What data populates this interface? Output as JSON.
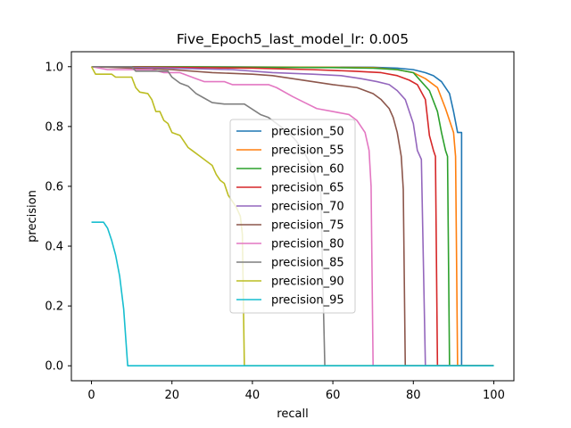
{
  "chart_data": {
    "type": "line",
    "title": "Five_Epoch5_last_model_lr: 0.005",
    "xlabel": "recall",
    "ylabel": "precision",
    "xlim": [
      -5,
      105
    ],
    "ylim": [
      -0.05,
      1.05
    ],
    "xticks": [
      0,
      20,
      40,
      60,
      80,
      100
    ],
    "yticks": [
      0.0,
      0.2,
      0.4,
      0.6,
      0.8,
      1.0
    ],
    "grid": false,
    "legend": {
      "placement": "center"
    },
    "series": [
      {
        "name": "precision_50",
        "color": "#1f77b4",
        "x": [
          0,
          70,
          76,
          80,
          83,
          85,
          87,
          89,
          90,
          91,
          92,
          92,
          100
        ],
        "y": [
          1.0,
          0.998,
          0.995,
          0.99,
          0.98,
          0.97,
          0.95,
          0.91,
          0.85,
          0.78,
          0.78,
          0.0,
          0.0
        ]
      },
      {
        "name": "precision_55",
        "color": "#ff7f0e",
        "x": [
          0,
          60,
          70,
          76,
          80,
          83,
          86,
          88,
          90,
          90.5,
          91,
          100
        ],
        "y": [
          1.0,
          0.998,
          0.997,
          0.99,
          0.98,
          0.96,
          0.93,
          0.86,
          0.78,
          0.7,
          0.0,
          0.0
        ]
      },
      {
        "name": "precision_60",
        "color": "#2ca02c",
        "x": [
          0,
          60,
          70,
          76,
          80,
          82,
          84,
          86,
          87,
          88,
          88.5,
          89,
          100
        ],
        "y": [
          1.0,
          0.997,
          0.995,
          0.99,
          0.98,
          0.95,
          0.92,
          0.85,
          0.78,
          0.72,
          0.7,
          0.0,
          0.0
        ]
      },
      {
        "name": "precision_65",
        "color": "#d62728",
        "x": [
          0,
          40,
          55,
          65,
          72,
          76,
          79,
          81,
          83,
          84,
          85,
          85.5,
          86,
          100
        ],
        "y": [
          1.0,
          0.995,
          0.99,
          0.985,
          0.98,
          0.97,
          0.955,
          0.94,
          0.89,
          0.77,
          0.72,
          0.7,
          0.0,
          0.0
        ]
      },
      {
        "name": "precision_70",
        "color": "#9467bd",
        "x": [
          0,
          20,
          35,
          45,
          55,
          62,
          67,
          71,
          74,
          76,
          78,
          80,
          81,
          82,
          83,
          100
        ],
        "y": [
          1.0,
          0.995,
          0.99,
          0.98,
          0.975,
          0.97,
          0.96,
          0.95,
          0.94,
          0.92,
          0.89,
          0.81,
          0.72,
          0.69,
          0.0,
          0.0
        ]
      },
      {
        "name": "precision_75",
        "color": "#8c564b",
        "x": [
          0,
          20,
          30,
          40,
          45,
          50,
          55,
          60,
          63,
          66,
          68,
          70,
          72,
          74,
          75,
          76,
          77,
          77.5,
          78,
          100
        ],
        "y": [
          1.0,
          0.99,
          0.98,
          0.975,
          0.97,
          0.96,
          0.95,
          0.94,
          0.935,
          0.93,
          0.92,
          0.91,
          0.89,
          0.86,
          0.83,
          0.78,
          0.7,
          0.59,
          0.0,
          0.0
        ]
      },
      {
        "name": "precision_80",
        "color": "#e377c2",
        "x": [
          0,
          4,
          15,
          18,
          22,
          24,
          26,
          28,
          33,
          35,
          44,
          46,
          50,
          53,
          56,
          60,
          64,
          66,
          68,
          69,
          69.5,
          70,
          100
        ],
        "y": [
          1.0,
          0.99,
          0.99,
          0.98,
          0.98,
          0.97,
          0.96,
          0.95,
          0.95,
          0.94,
          0.94,
          0.93,
          0.9,
          0.88,
          0.86,
          0.85,
          0.84,
          0.82,
          0.78,
          0.72,
          0.6,
          0.0,
          0.0
        ]
      },
      {
        "name": "precision_85",
        "color": "#7f7f7f",
        "x": [
          0,
          10,
          11,
          19,
          20,
          22,
          24,
          26,
          28,
          30,
          33,
          38,
          42,
          44,
          46,
          49,
          51,
          53,
          55,
          56,
          57,
          58,
          100
        ],
        "y": [
          1.0,
          1.0,
          0.985,
          0.985,
          0.965,
          0.945,
          0.935,
          0.91,
          0.895,
          0.88,
          0.875,
          0.875,
          0.84,
          0.83,
          0.81,
          0.78,
          0.75,
          0.71,
          0.66,
          0.6,
          0.58,
          0.0,
          0.0
        ]
      },
      {
        "name": "precision_90",
        "color": "#bcbd22",
        "x": [
          0,
          1,
          5,
          6,
          10,
          11,
          12,
          14,
          15,
          16,
          17,
          18,
          19,
          20,
          22,
          24,
          25,
          27,
          29,
          30,
          31,
          32,
          33,
          34,
          35,
          36,
          37,
          37.5,
          38,
          100
        ],
        "y": [
          1.0,
          0.975,
          0.975,
          0.965,
          0.965,
          0.93,
          0.915,
          0.91,
          0.89,
          0.85,
          0.85,
          0.82,
          0.81,
          0.78,
          0.77,
          0.73,
          0.72,
          0.7,
          0.68,
          0.67,
          0.64,
          0.62,
          0.61,
          0.57,
          0.55,
          0.53,
          0.5,
          0.44,
          0.0,
          0.0
        ]
      },
      {
        "name": "precision_95",
        "color": "#17becf",
        "x": [
          0,
          1,
          2,
          3,
          4,
          5,
          6,
          7,
          8,
          9,
          100
        ],
        "y": [
          0.48,
          0.48,
          0.48,
          0.48,
          0.46,
          0.42,
          0.37,
          0.3,
          0.19,
          0.0,
          0.0
        ]
      }
    ]
  }
}
